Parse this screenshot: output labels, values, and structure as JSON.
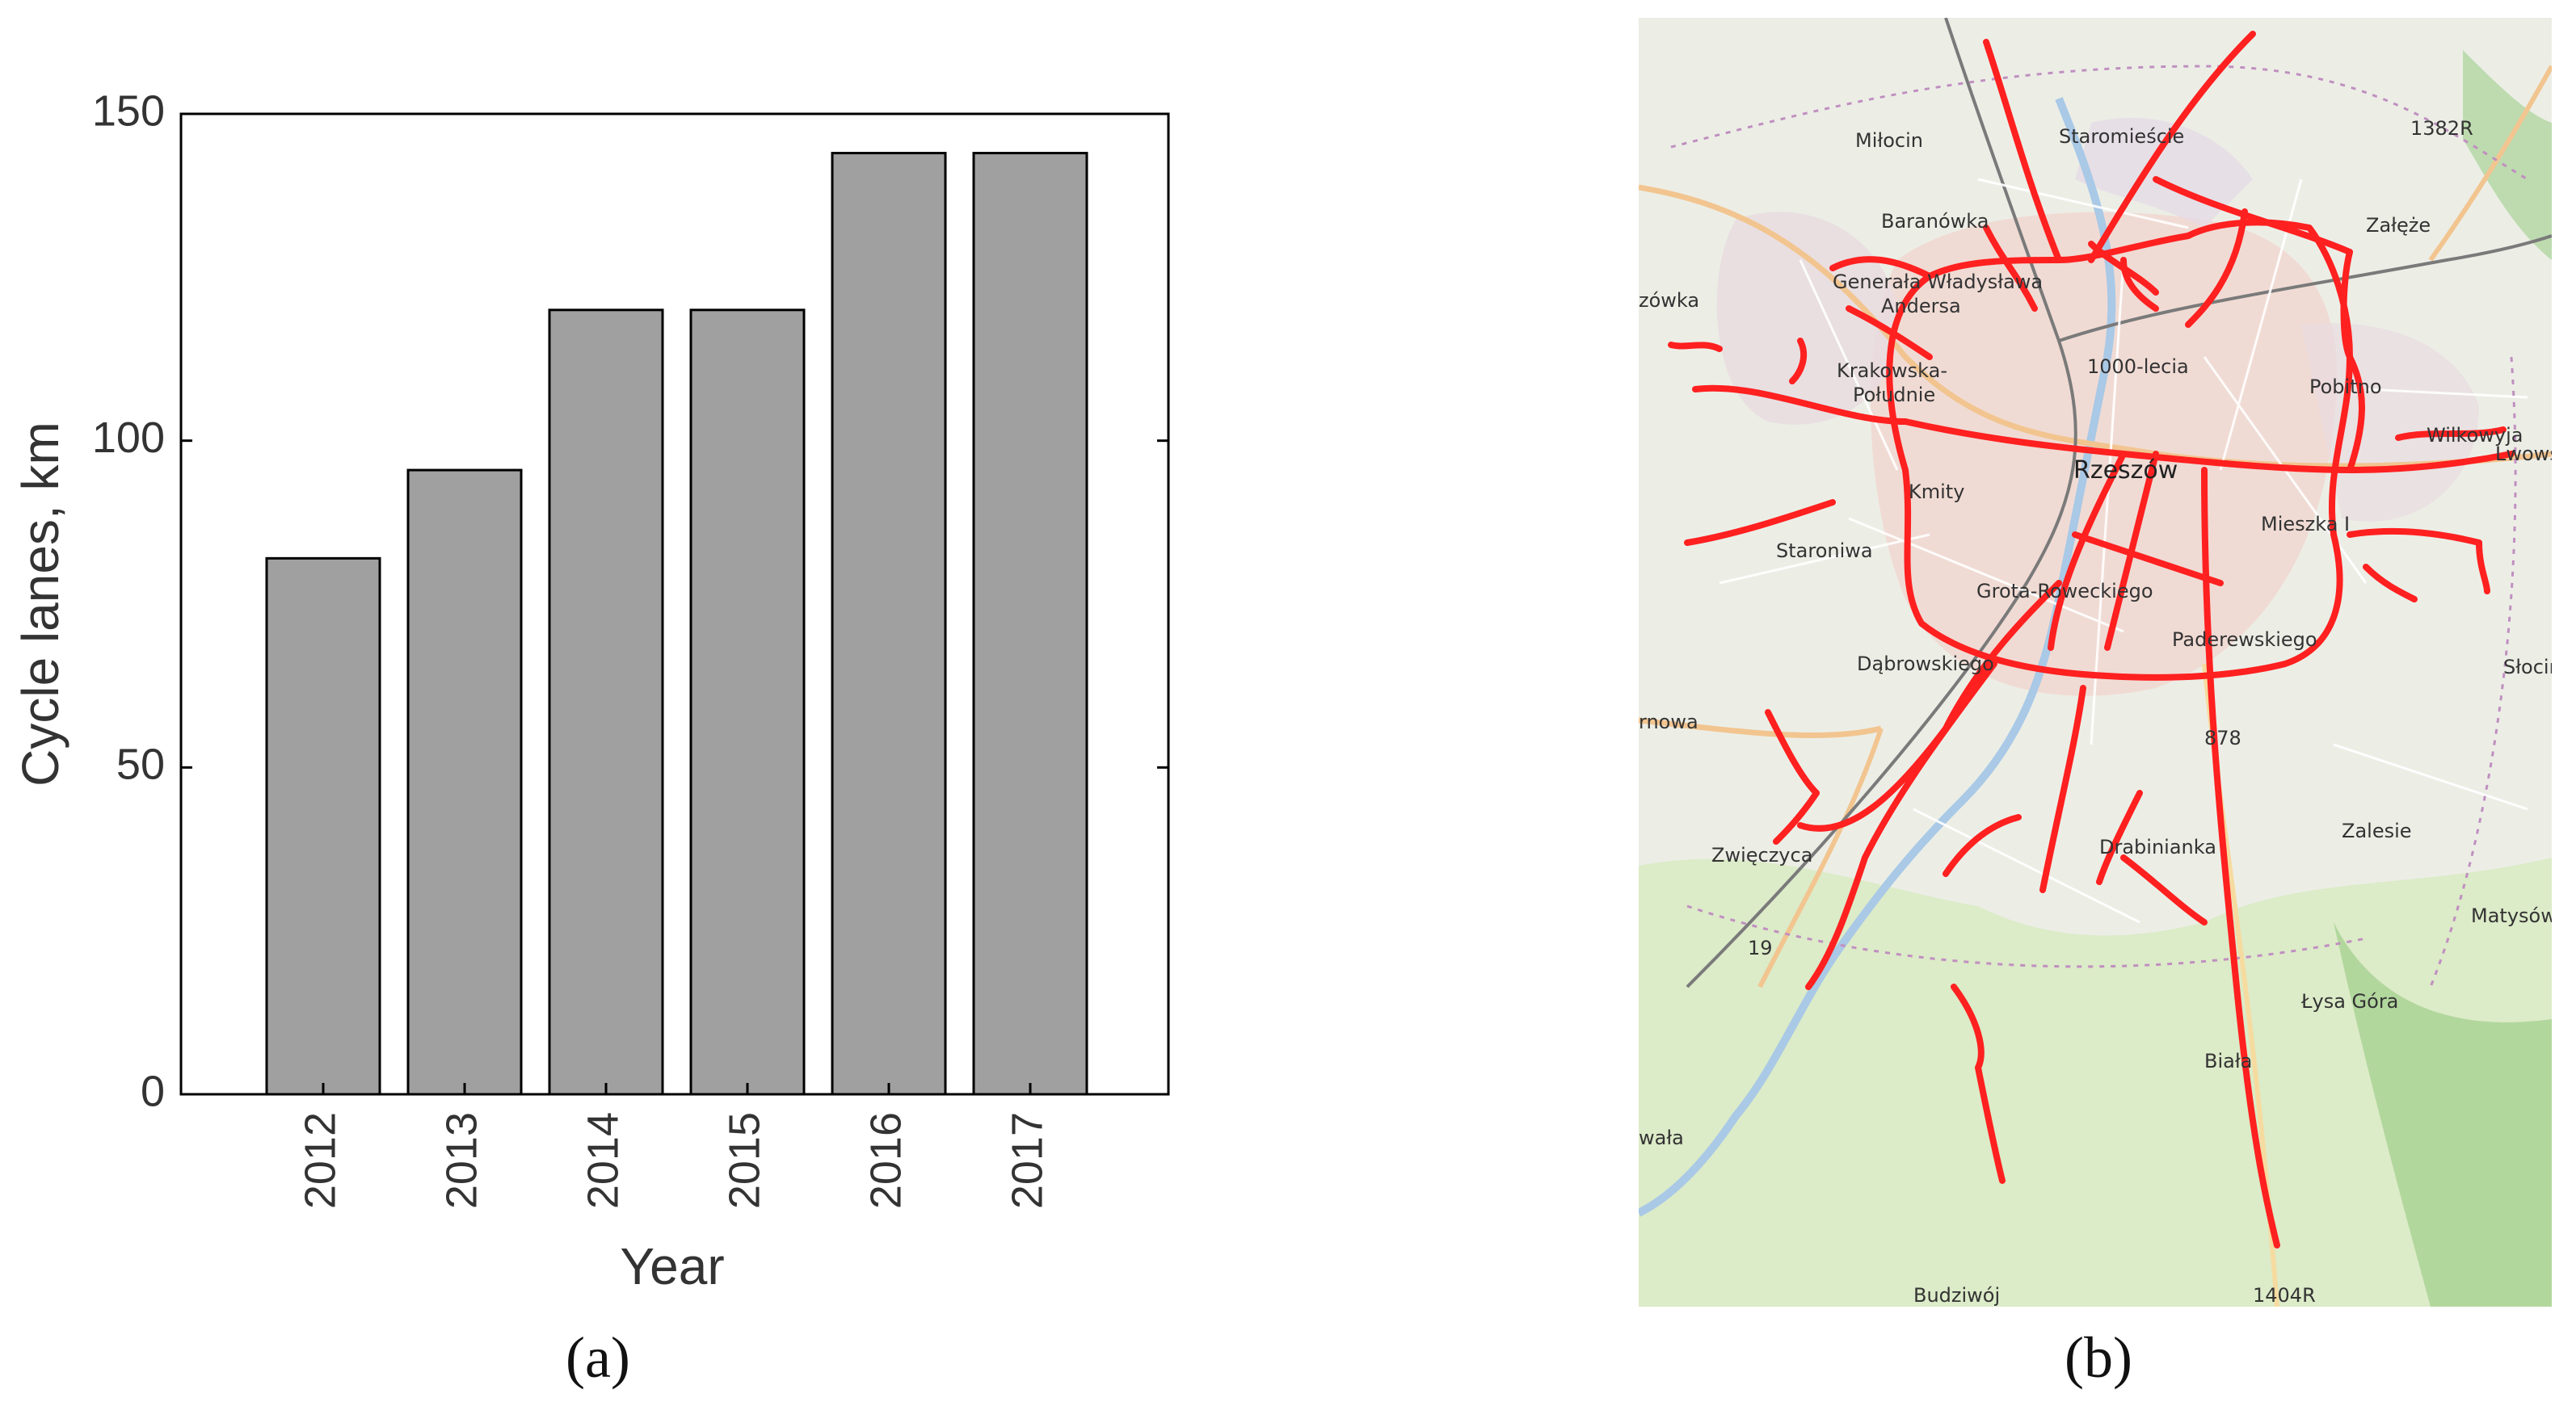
{
  "chart_data": {
    "type": "bar",
    "categories": [
      "2012",
      "2013",
      "2014",
      "2015",
      "2016",
      "2017"
    ],
    "values": [
      82,
      95.5,
      120,
      120,
      144,
      144
    ],
    "xlabel": "Year",
    "ylabel": "Cycle lanes, km",
    "ylim": [
      0,
      150
    ],
    "yticks": [
      0,
      50,
      100,
      150
    ],
    "grid": false,
    "bar_color": "#a0a0a0",
    "edge_color": "#000000"
  },
  "captions": {
    "a": "(a)",
    "b": "(b)"
  },
  "map": {
    "lane_color": "#ff2020",
    "labels": {
      "milocin": "Miłocin",
      "staromiescie": "Staromieście",
      "r1382": "1382R",
      "baranowka": "Baranówka",
      "zaleze": "Załęże",
      "gen1": "Generała Władysława",
      "gen2": "Andersa",
      "zowka": "zówka",
      "tysiaclecia": "1000-lecia",
      "krak1": "Krakowska-",
      "krak2": "Południe",
      "pobitno": "Pobitno",
      "wilkowyja": "Wilkowyja",
      "lwowska": "Lwowska",
      "rzeszow": "Rzeszów",
      "kmity": "Kmity",
      "staroniwa": "Staroniwa",
      "mieszka": "Mieszka I",
      "grota": "Grota-Roweckiego",
      "paderewskiego": "Paderewskiego",
      "dabrowskiego": "Dąbrowskiego",
      "slocina": "Słocina",
      "r878": "878",
      "zalesie": "Zalesie",
      "drabinianka": "Drabinianka",
      "zwieczyca": "Zwięczyca",
      "matysowka": "Matysówka",
      "r19": "19",
      "lysa": "Łysa Góra",
      "biala": "Biała",
      "wala": "wała",
      "budziwoj": "Budziwój",
      "r1404": "1404R",
      "nowa": "rnowa"
    }
  }
}
